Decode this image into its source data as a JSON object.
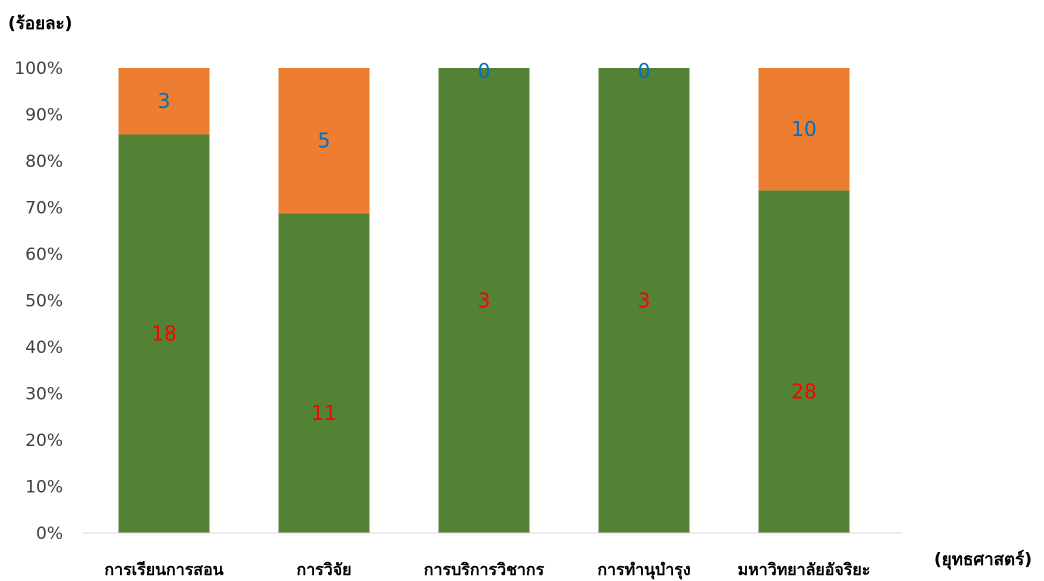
{
  "chart_data": {
    "type": "bar",
    "stacked": true,
    "percent": true,
    "ylabel": "(ร้อยละ)",
    "xlabel": "(ยุทธศาสตร์)",
    "categories": [
      "การเรียนการสอน",
      "การวิจัย",
      "การบริการวิชากร",
      "การทำนุบำรุง",
      "มหาวิทยาลัยอัจริยะ"
    ],
    "series": [
      {
        "values": [
          18,
          11,
          3,
          3,
          28
        ],
        "color": "#548235",
        "label_color": "#ff0000"
      },
      {
        "values": [
          3,
          5,
          0,
          0,
          10
        ],
        "color": "#ed7d31",
        "label_color": "#0070c0"
      }
    ],
    "ylim": [
      0,
      100
    ],
    "yticks": [
      "0%",
      "10%",
      "20%",
      "30%",
      "40%",
      "50%",
      "60%",
      "70%",
      "80%",
      "90%",
      "100%"
    ],
    "grid": false,
    "legend": "none"
  }
}
